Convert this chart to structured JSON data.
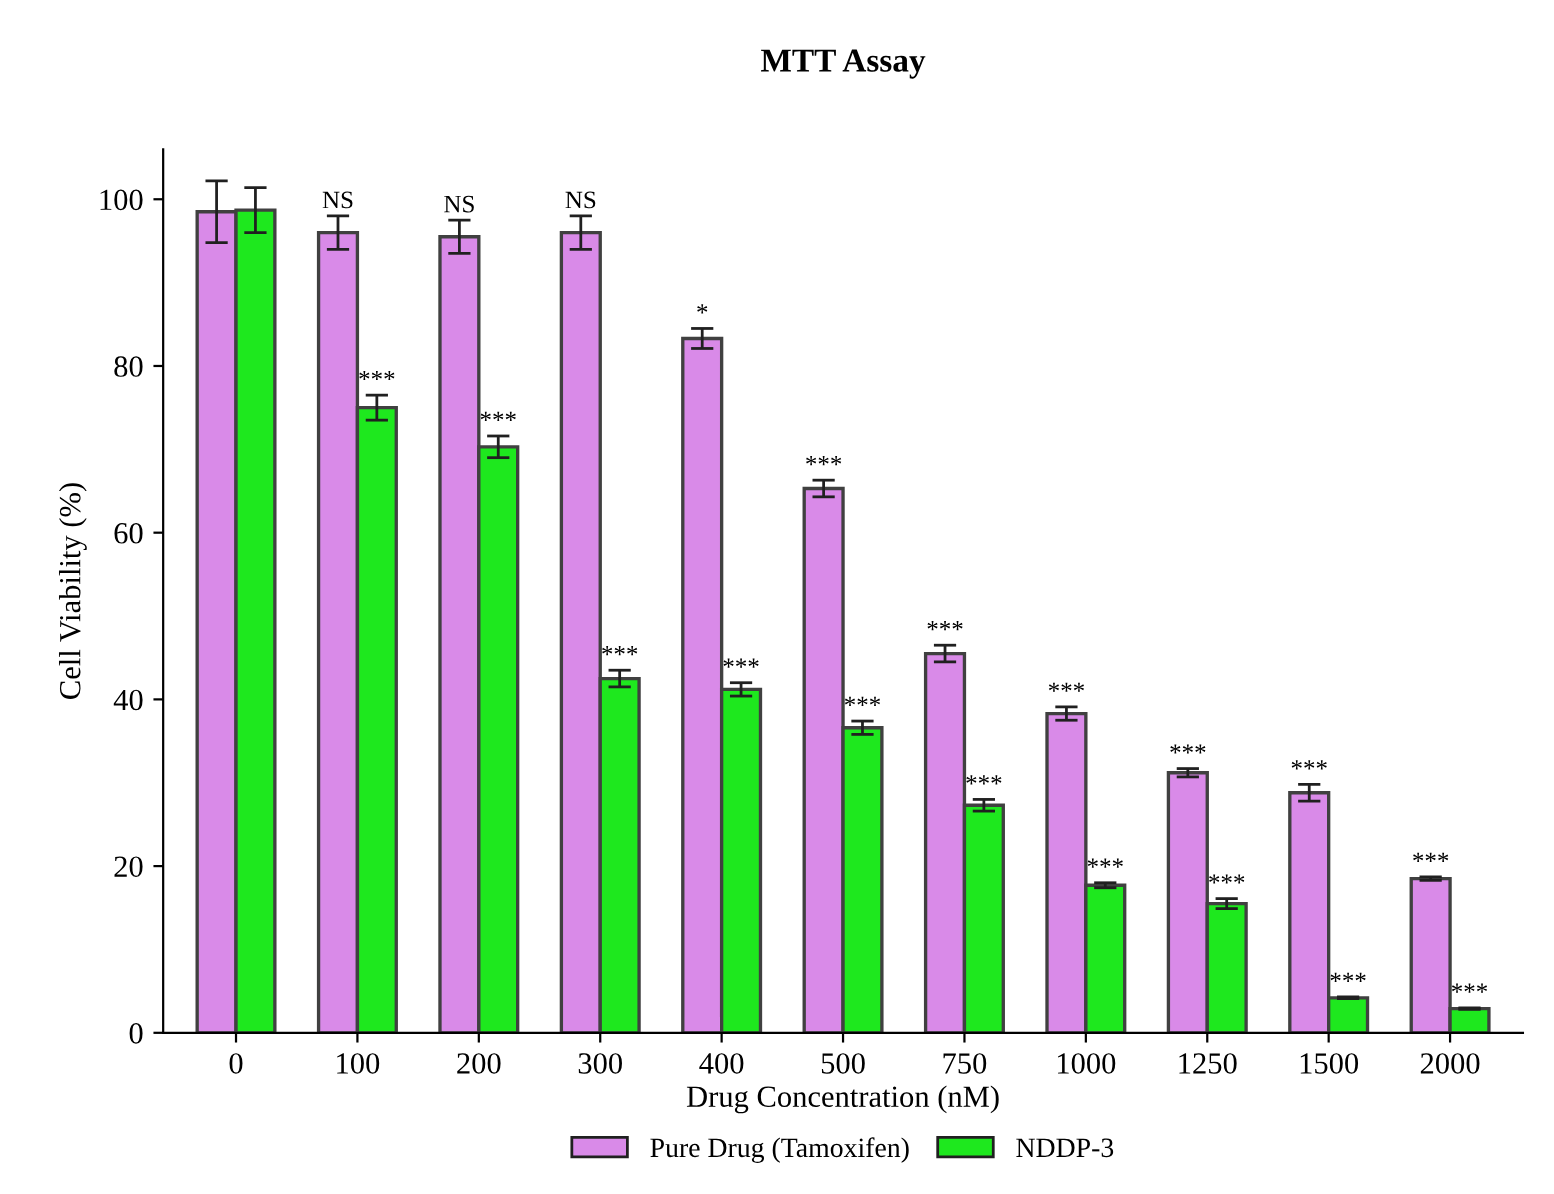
{
  "chart_data": {
    "type": "bar",
    "title": "MTT Assay",
    "xlabel": "Drug Concentration (nM)",
    "ylabel": "Cell Viability (%)",
    "categories": [
      "0",
      "100",
      "200",
      "300",
      "400",
      "500",
      "750",
      "1000",
      "1250",
      "1500",
      "2000"
    ],
    "series": [
      {
        "name": "Pure Drug (Tamoxifen)",
        "color": "#d98ae8",
        "values": [
          98.5,
          96,
          95.5,
          96,
          83.3,
          65.3,
          45.5,
          38.3,
          31.2,
          28.8,
          18.5
        ],
        "errors": [
          3.7,
          2,
          2,
          2,
          1.2,
          1,
          1,
          0.8,
          0.5,
          1,
          0.2
        ],
        "value_labels": [
          null,
          "NS",
          "NS",
          "NS",
          "*",
          "***",
          "***",
          "***",
          "***",
          "***",
          "***"
        ]
      },
      {
        "name": "NDDP-3",
        "color": "#1ee81e",
        "values": [
          98.7,
          75,
          70.3,
          42.5,
          41.2,
          36.6,
          27.3,
          17.7,
          15.5,
          4.2,
          2.9
        ],
        "errors": [
          2.7,
          1.5,
          1.3,
          1,
          0.8,
          0.8,
          0.7,
          0.3,
          0.6,
          0.1,
          0.1
        ],
        "value_labels": [
          null,
          "***",
          "***",
          "***",
          "***",
          "***",
          "***",
          "***",
          "***",
          "***",
          "***"
        ]
      }
    ],
    "ylim": [
      0,
      106
    ],
    "yticks": [
      0,
      20,
      40,
      60,
      80,
      100
    ],
    "grid": false,
    "legend": "bottom"
  }
}
